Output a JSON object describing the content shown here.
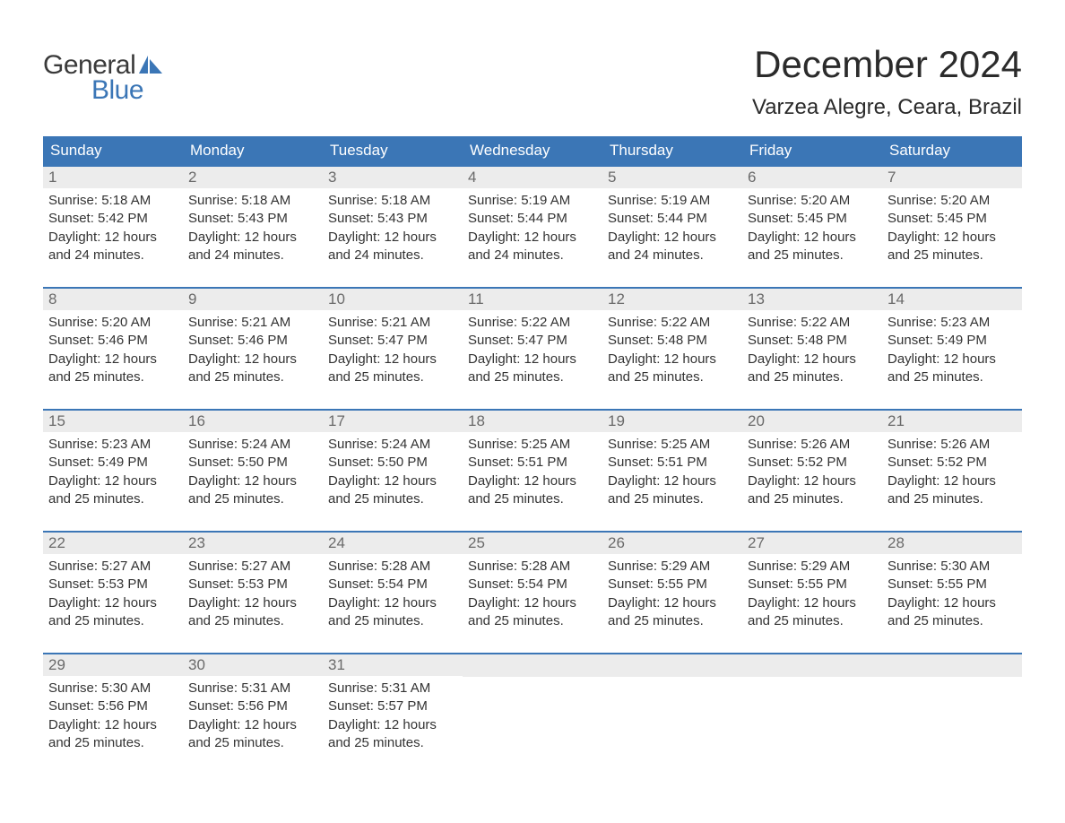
{
  "brand": {
    "word1": "General",
    "word2": "Blue",
    "text_dark": "#3a3a3a",
    "text_blue": "#3b76b6",
    "sail_color": "#3b76b6"
  },
  "title": "December 2024",
  "location": "Varzea Alegre, Ceara, Brazil",
  "theme": {
    "header_bg": "#3b76b6",
    "header_text": "#ffffff",
    "row_border": "#3b76b6",
    "daynum_bg": "#ececec",
    "daynum_text": "#6a6a6a",
    "body_text": "#333333",
    "page_bg": "#ffffff",
    "title_fontsize": 42,
    "location_fontsize": 24,
    "weekday_fontsize": 17,
    "body_fontsize": 15
  },
  "weekdays": [
    "Sunday",
    "Monday",
    "Tuesday",
    "Wednesday",
    "Thursday",
    "Friday",
    "Saturday"
  ],
  "weeks": [
    [
      {
        "n": 1,
        "sr": "5:18 AM",
        "ss": "5:42 PM",
        "dl": "12 hours and 24 minutes."
      },
      {
        "n": 2,
        "sr": "5:18 AM",
        "ss": "5:43 PM",
        "dl": "12 hours and 24 minutes."
      },
      {
        "n": 3,
        "sr": "5:18 AM",
        "ss": "5:43 PM",
        "dl": "12 hours and 24 minutes."
      },
      {
        "n": 4,
        "sr": "5:19 AM",
        "ss": "5:44 PM",
        "dl": "12 hours and 24 minutes."
      },
      {
        "n": 5,
        "sr": "5:19 AM",
        "ss": "5:44 PM",
        "dl": "12 hours and 24 minutes."
      },
      {
        "n": 6,
        "sr": "5:20 AM",
        "ss": "5:45 PM",
        "dl": "12 hours and 25 minutes."
      },
      {
        "n": 7,
        "sr": "5:20 AM",
        "ss": "5:45 PM",
        "dl": "12 hours and 25 minutes."
      }
    ],
    [
      {
        "n": 8,
        "sr": "5:20 AM",
        "ss": "5:46 PM",
        "dl": "12 hours and 25 minutes."
      },
      {
        "n": 9,
        "sr": "5:21 AM",
        "ss": "5:46 PM",
        "dl": "12 hours and 25 minutes."
      },
      {
        "n": 10,
        "sr": "5:21 AM",
        "ss": "5:47 PM",
        "dl": "12 hours and 25 minutes."
      },
      {
        "n": 11,
        "sr": "5:22 AM",
        "ss": "5:47 PM",
        "dl": "12 hours and 25 minutes."
      },
      {
        "n": 12,
        "sr": "5:22 AM",
        "ss": "5:48 PM",
        "dl": "12 hours and 25 minutes."
      },
      {
        "n": 13,
        "sr": "5:22 AM",
        "ss": "5:48 PM",
        "dl": "12 hours and 25 minutes."
      },
      {
        "n": 14,
        "sr": "5:23 AM",
        "ss": "5:49 PM",
        "dl": "12 hours and 25 minutes."
      }
    ],
    [
      {
        "n": 15,
        "sr": "5:23 AM",
        "ss": "5:49 PM",
        "dl": "12 hours and 25 minutes."
      },
      {
        "n": 16,
        "sr": "5:24 AM",
        "ss": "5:50 PM",
        "dl": "12 hours and 25 minutes."
      },
      {
        "n": 17,
        "sr": "5:24 AM",
        "ss": "5:50 PM",
        "dl": "12 hours and 25 minutes."
      },
      {
        "n": 18,
        "sr": "5:25 AM",
        "ss": "5:51 PM",
        "dl": "12 hours and 25 minutes."
      },
      {
        "n": 19,
        "sr": "5:25 AM",
        "ss": "5:51 PM",
        "dl": "12 hours and 25 minutes."
      },
      {
        "n": 20,
        "sr": "5:26 AM",
        "ss": "5:52 PM",
        "dl": "12 hours and 25 minutes."
      },
      {
        "n": 21,
        "sr": "5:26 AM",
        "ss": "5:52 PM",
        "dl": "12 hours and 25 minutes."
      }
    ],
    [
      {
        "n": 22,
        "sr": "5:27 AM",
        "ss": "5:53 PM",
        "dl": "12 hours and 25 minutes."
      },
      {
        "n": 23,
        "sr": "5:27 AM",
        "ss": "5:53 PM",
        "dl": "12 hours and 25 minutes."
      },
      {
        "n": 24,
        "sr": "5:28 AM",
        "ss": "5:54 PM",
        "dl": "12 hours and 25 minutes."
      },
      {
        "n": 25,
        "sr": "5:28 AM",
        "ss": "5:54 PM",
        "dl": "12 hours and 25 minutes."
      },
      {
        "n": 26,
        "sr": "5:29 AM",
        "ss": "5:55 PM",
        "dl": "12 hours and 25 minutes."
      },
      {
        "n": 27,
        "sr": "5:29 AM",
        "ss": "5:55 PM",
        "dl": "12 hours and 25 minutes."
      },
      {
        "n": 28,
        "sr": "5:30 AM",
        "ss": "5:55 PM",
        "dl": "12 hours and 25 minutes."
      }
    ],
    [
      {
        "n": 29,
        "sr": "5:30 AM",
        "ss": "5:56 PM",
        "dl": "12 hours and 25 minutes."
      },
      {
        "n": 30,
        "sr": "5:31 AM",
        "ss": "5:56 PM",
        "dl": "12 hours and 25 minutes."
      },
      {
        "n": 31,
        "sr": "5:31 AM",
        "ss": "5:57 PM",
        "dl": "12 hours and 25 minutes."
      },
      null,
      null,
      null,
      null
    ]
  ],
  "labels": {
    "sunrise": "Sunrise: ",
    "sunset": "Sunset: ",
    "daylight": "Daylight: "
  }
}
